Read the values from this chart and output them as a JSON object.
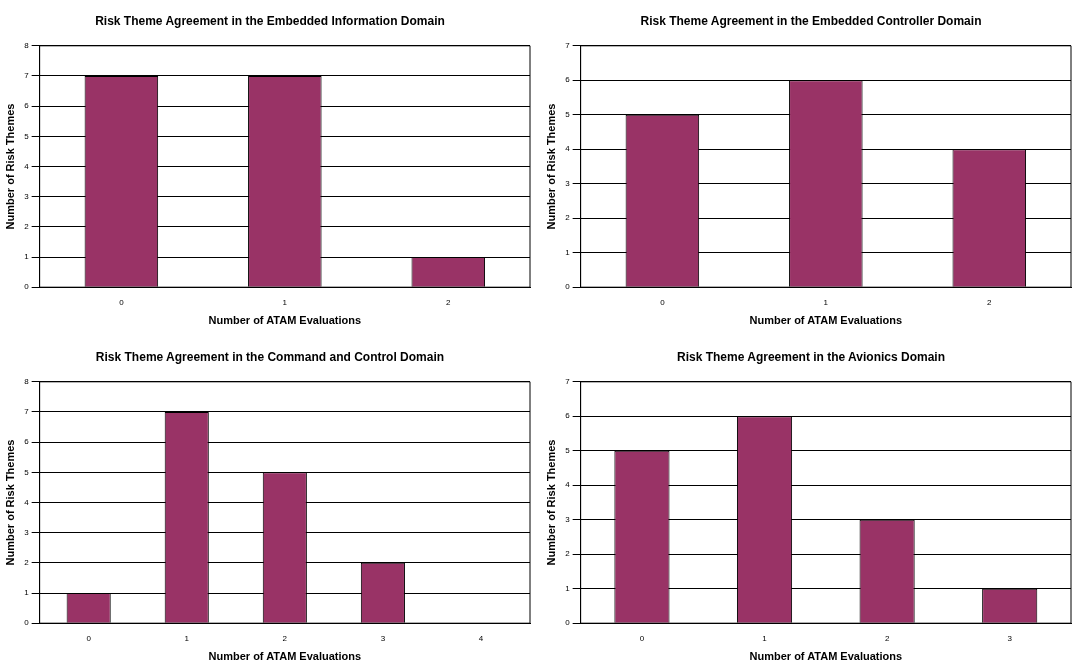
{
  "chart_data": [
    {
      "type": "bar",
      "title": "Risk Theme Agreement in the Embedded Information Domain",
      "xlabel": "Number of ATAM Evaluations",
      "ylabel": "Number of Risk Themes",
      "categories": [
        "0",
        "1",
        "2"
      ],
      "values": [
        7,
        7,
        1
      ],
      "color": "#993366",
      "ylim": [
        0,
        8
      ],
      "yticks": [
        0,
        1,
        2,
        3,
        4,
        5,
        6,
        7,
        8
      ],
      "grid": "y",
      "legend": false
    },
    {
      "type": "bar",
      "title": "Risk Theme Agreement in the Embedded Controller Domain",
      "xlabel": "Number of ATAM Evaluations",
      "ylabel": "Number of Risk Themes",
      "categories": [
        "0",
        "1",
        "2"
      ],
      "values": [
        5,
        6,
        4
      ],
      "color": "#993366",
      "ylim": [
        0,
        7
      ],
      "yticks": [
        0,
        1,
        2,
        3,
        4,
        5,
        6,
        7
      ],
      "grid": "y",
      "legend": false
    },
    {
      "type": "bar",
      "title": "Risk Theme Agreement in the Command and Control Domain",
      "xlabel": "Number of ATAM Evaluations",
      "ylabel": "Number of Risk Themes",
      "categories": [
        "0",
        "1",
        "2",
        "3",
        "4"
      ],
      "values": [
        1,
        7,
        5,
        2,
        0
      ],
      "color": "#993366",
      "ylim": [
        0,
        8
      ],
      "yticks": [
        0,
        1,
        2,
        3,
        4,
        5,
        6,
        7,
        8
      ],
      "grid": "y",
      "legend": false
    },
    {
      "type": "bar",
      "title": "Risk Theme Agreement in the Avionics Domain",
      "xlabel": "Number of ATAM Evaluations",
      "ylabel": "Number of Risk Themes",
      "categories": [
        "0",
        "1",
        "2",
        "3"
      ],
      "values": [
        5,
        6,
        3,
        1
      ],
      "color": "#993366",
      "ylim": [
        0,
        7
      ],
      "yticks": [
        0,
        1,
        2,
        3,
        4,
        5,
        6,
        7
      ],
      "grid": "y",
      "legend": false
    }
  ]
}
